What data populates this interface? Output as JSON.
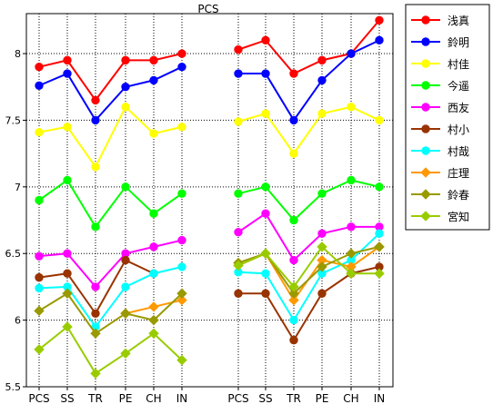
{
  "chart_data": {
    "type": "line",
    "title": "PCS",
    "xlabel": "",
    "ylabel": "",
    "ylim": [
      5.5,
      8.3
    ],
    "yticks": [
      5.5,
      6,
      6.5,
      7,
      7.5,
      8
    ],
    "grid": true,
    "legend_position": "right",
    "panels": [
      {
        "categories": [
          "PCS",
          "SS",
          "TR",
          "PE",
          "CH",
          "IN"
        ]
      },
      {
        "categories": [
          "PCS",
          "SS",
          "TR",
          "PE",
          "CH",
          "IN"
        ]
      }
    ],
    "series": [
      {
        "name": "浅真",
        "color": "#ff0000",
        "marker": "circle",
        "values": [
          [
            7.9,
            7.95,
            7.65,
            7.95,
            7.95,
            8.0
          ],
          [
            8.03,
            8.1,
            7.85,
            7.95,
            8.0,
            8.25
          ]
        ]
      },
      {
        "name": "鈴明",
        "color": "#0000ff",
        "marker": "circle",
        "values": [
          [
            7.76,
            7.85,
            7.5,
            7.75,
            7.8,
            7.9
          ],
          [
            7.85,
            7.85,
            7.5,
            7.8,
            8.0,
            8.1
          ]
        ]
      },
      {
        "name": "村佳",
        "color": "#ffff00",
        "marker": "circle",
        "values": [
          [
            7.41,
            7.45,
            7.15,
            7.6,
            7.4,
            7.45
          ],
          [
            7.49,
            7.55,
            7.25,
            7.55,
            7.6,
            7.5
          ]
        ]
      },
      {
        "name": "今遥",
        "color": "#00ff00",
        "marker": "circle",
        "values": [
          [
            6.9,
            7.05,
            6.7,
            7.0,
            6.8,
            6.95
          ],
          [
            6.95,
            7.0,
            6.75,
            6.95,
            7.05,
            7.0
          ]
        ]
      },
      {
        "name": "西友",
        "color": "#ff00ff",
        "marker": "circle",
        "values": [
          [
            6.48,
            6.5,
            6.25,
            6.5,
            6.55,
            6.6
          ],
          [
            6.66,
            6.8,
            6.45,
            6.65,
            6.7,
            6.7
          ]
        ]
      },
      {
        "name": "村小",
        "color": "#993300",
        "marker": "circle",
        "values": [
          [
            6.32,
            6.35,
            6.05,
            6.45,
            6.35,
            null
          ],
          [
            6.2,
            6.2,
            5.85,
            6.2,
            6.35,
            6.4
          ]
        ]
      },
      {
        "name": "村哉",
        "color": "#00ffff",
        "marker": "circle",
        "values": [
          [
            6.24,
            6.25,
            5.95,
            6.25,
            6.35,
            6.4
          ],
          [
            6.36,
            6.35,
            6.0,
            6.35,
            6.45,
            6.65
          ]
        ]
      },
      {
        "name": "庄理",
        "color": "#ff9900",
        "marker": "diamond",
        "values": [
          [
            null,
            null,
            null,
            6.05,
            6.1,
            6.15
          ],
          [
            6.41,
            6.5,
            6.15,
            6.45,
            6.4,
            6.55
          ]
        ]
      },
      {
        "name": "鈴春",
        "color": "#999900",
        "marker": "diamond",
        "values": [
          [
            6.07,
            6.2,
            5.9,
            6.05,
            6.0,
            6.2
          ],
          [
            6.43,
            6.5,
            6.2,
            6.4,
            6.5,
            6.55
          ]
        ]
      },
      {
        "name": "宮知",
        "color": "#99cc00",
        "marker": "diamond",
        "values": [
          [
            5.78,
            5.95,
            5.6,
            5.75,
            5.9,
            5.7
          ],
          [
            6.41,
            6.5,
            6.25,
            6.55,
            6.35,
            6.35
          ]
        ]
      }
    ]
  }
}
